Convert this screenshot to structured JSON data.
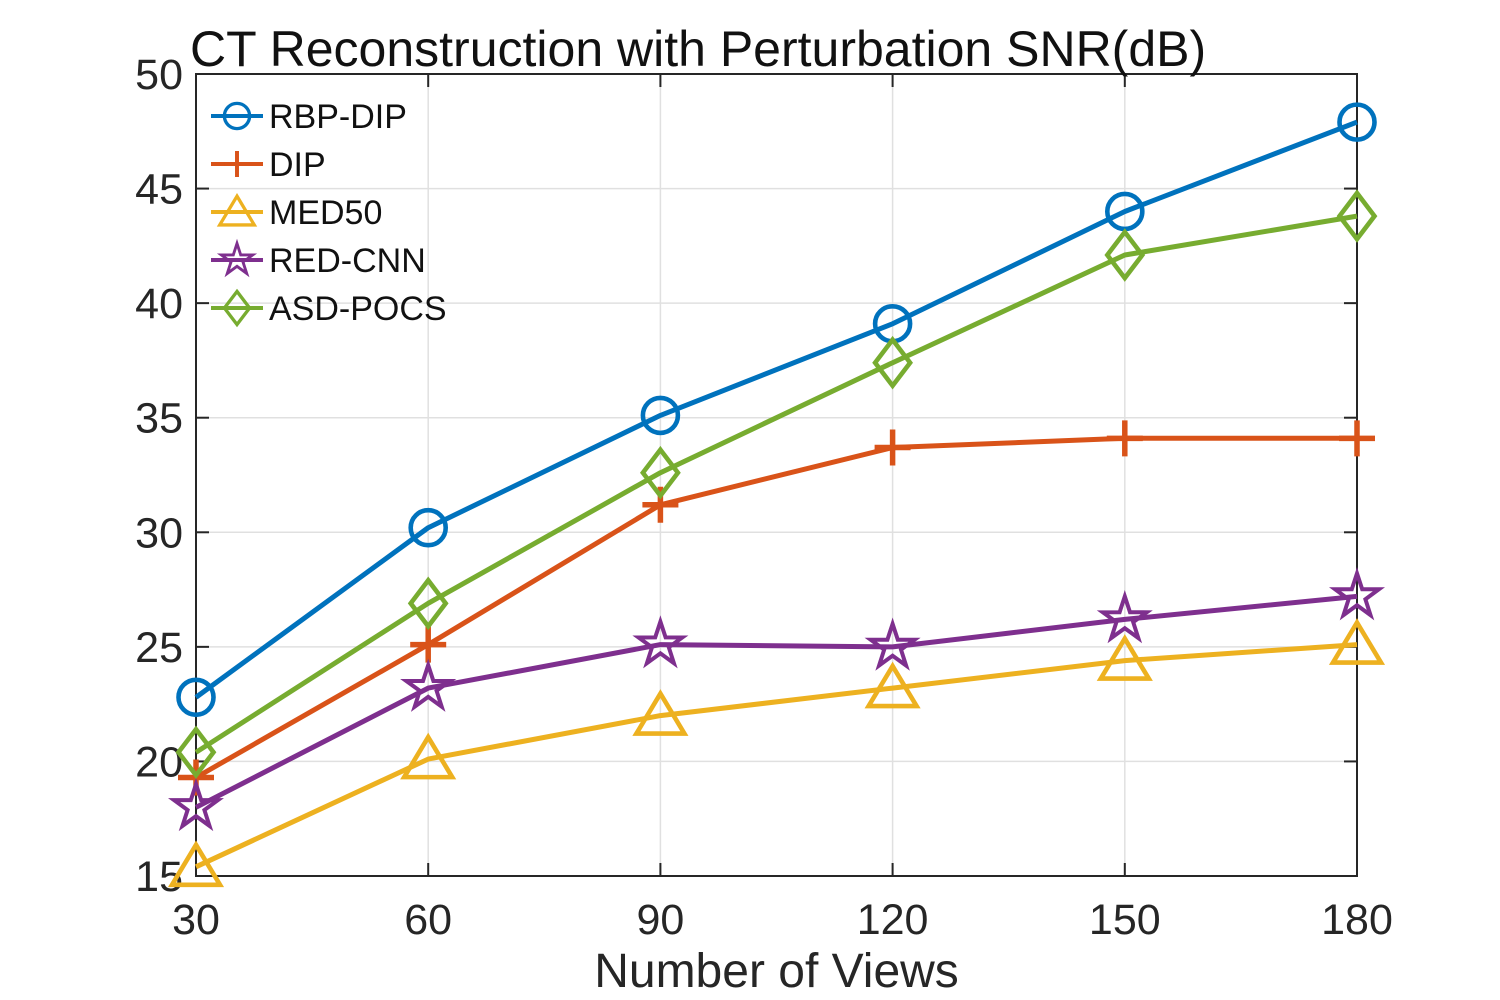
{
  "title": "CT Reconstruction with Perturbation SNR(dB)",
  "xlabel": "Number of Views",
  "axis_color": "#262626",
  "grid_color": "#e0e0e0",
  "chart_data": {
    "type": "line",
    "title": "CT Reconstruction with Perturbation SNR(dB)",
    "xlabel": "Number of Views",
    "ylabel": "",
    "x": [
      30,
      60,
      90,
      120,
      150,
      180
    ],
    "xticks": [
      30,
      60,
      90,
      120,
      150,
      180
    ],
    "yticks": [
      15,
      20,
      25,
      30,
      35,
      40,
      45,
      50
    ],
    "xlim": [
      30,
      180
    ],
    "ylim": [
      15,
      50
    ],
    "grid": true,
    "legend_position": "top-left",
    "series": [
      {
        "name": "RBP-DIP",
        "marker": "circle",
        "color": "#0072BD",
        "values": [
          22.8,
          30.2,
          35.1,
          39.1,
          44.0,
          47.9
        ]
      },
      {
        "name": "DIP",
        "marker": "plus",
        "color": "#D95319",
        "values": [
          19.3,
          25.1,
          31.2,
          33.7,
          34.1,
          34.1
        ]
      },
      {
        "name": "MED50",
        "marker": "triangle",
        "color": "#EDB120",
        "values": [
          15.4,
          20.1,
          22.0,
          23.2,
          24.4,
          25.1
        ]
      },
      {
        "name": "RED-CNN",
        "marker": "star",
        "color": "#7E2F8E",
        "values": [
          18.0,
          23.2,
          25.1,
          25.0,
          26.2,
          27.2
        ]
      },
      {
        "name": "ASD-POCS",
        "marker": "diamond",
        "color": "#77AC30",
        "values": [
          20.4,
          26.9,
          32.6,
          37.4,
          42.1,
          43.8
        ]
      }
    ]
  }
}
